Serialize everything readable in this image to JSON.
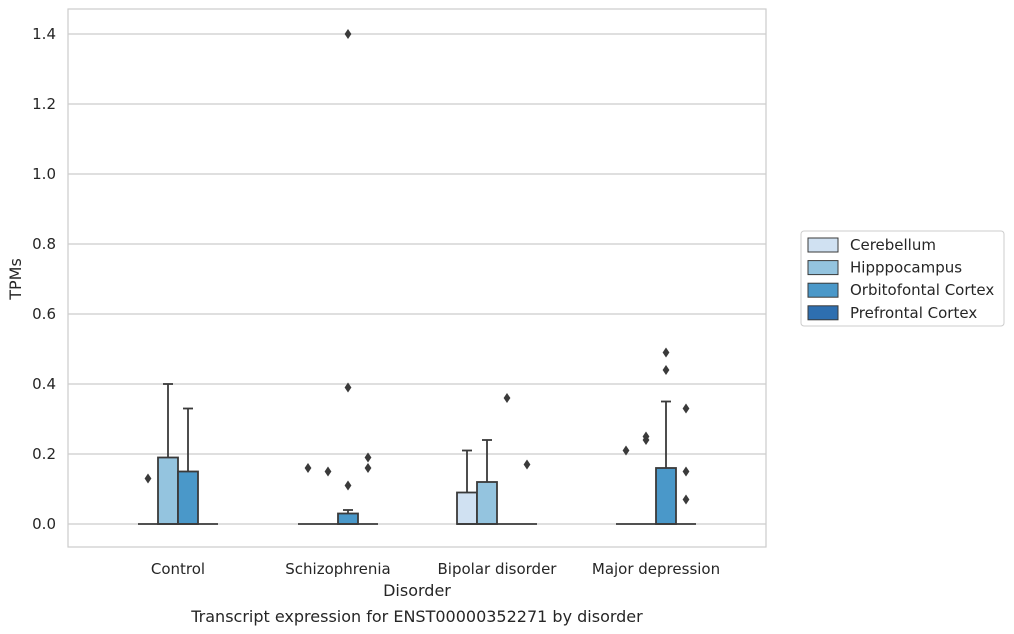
{
  "chart_data": {
    "type": "box",
    "caption": "Transcript expression for ENST00000352271 by disorder",
    "xlabel": "Disorder",
    "ylabel": "TPMs",
    "ylim": [
      -0.07,
      1.47
    ],
    "yticks": [
      0.0,
      0.2,
      0.4,
      0.6,
      0.8,
      1.0,
      1.2,
      1.4
    ],
    "ytick_labels": [
      "0.0",
      "0.2",
      "0.4",
      "0.6",
      "0.8",
      "1.0",
      "1.2",
      "1.4"
    ],
    "grid": "horizontal",
    "legend_position": "right",
    "categories": [
      "Control",
      "Schizophrenia",
      "Bipolar disorder",
      "Major depression"
    ],
    "series": [
      {
        "name": "Cerebellum",
        "color": "#d0e1f2",
        "boxes": [
          {
            "q1": 0,
            "median": 0,
            "q3": 0,
            "whisker_low": 0,
            "whisker_high": 0,
            "outliers": [
              0.13
            ]
          },
          {
            "q1": 0,
            "median": 0,
            "q3": 0,
            "whisker_low": 0,
            "whisker_high": 0,
            "outliers": [
              0.16
            ]
          },
          {
            "q1": 0,
            "median": 0,
            "q3": 0.09,
            "whisker_low": 0,
            "whisker_high": 0.21,
            "outliers": []
          },
          {
            "q1": 0,
            "median": 0,
            "q3": 0,
            "whisker_low": 0,
            "whisker_high": 0,
            "outliers": [
              0.21
            ]
          }
        ]
      },
      {
        "name": "Hipppocampus",
        "color": "#94c4df",
        "boxes": [
          {
            "q1": 0,
            "median": 0,
            "q3": 0.19,
            "whisker_low": 0,
            "whisker_high": 0.4,
            "outliers": []
          },
          {
            "q1": 0,
            "median": 0,
            "q3": 0,
            "whisker_low": 0,
            "whisker_high": 0,
            "outliers": [
              0.15
            ]
          },
          {
            "q1": 0,
            "median": 0,
            "q3": 0.12,
            "whisker_low": 0,
            "whisker_high": 0.24,
            "outliers": []
          },
          {
            "q1": 0,
            "median": 0,
            "q3": 0,
            "whisker_low": 0,
            "whisker_high": 0,
            "outliers": [
              0.24,
              0.25
            ]
          }
        ]
      },
      {
        "name": "Orbitofontal Cortex",
        "color": "#4a98c9",
        "boxes": [
          {
            "q1": 0,
            "median": 0,
            "q3": 0.15,
            "whisker_low": 0,
            "whisker_high": 0.33,
            "outliers": []
          },
          {
            "q1": 0,
            "median": 0,
            "q3": 0.03,
            "whisker_low": 0,
            "whisker_high": 0.04,
            "outliers": [
              0.11,
              0.39,
              1.4
            ]
          },
          {
            "q1": 0,
            "median": 0,
            "q3": 0,
            "whisker_low": 0,
            "whisker_high": 0,
            "outliers": [
              0.36
            ]
          },
          {
            "q1": 0,
            "median": 0,
            "q3": 0.16,
            "whisker_low": 0,
            "whisker_high": 0.35,
            "outliers": [
              0.44,
              0.49
            ]
          }
        ]
      },
      {
        "name": "Prefrontal Cortex",
        "color": "#2e6fb0",
        "boxes": [
          {
            "q1": 0,
            "median": 0,
            "q3": 0,
            "whisker_low": 0,
            "whisker_high": 0,
            "outliers": []
          },
          {
            "q1": 0,
            "median": 0,
            "q3": 0,
            "whisker_low": 0,
            "whisker_high": 0,
            "outliers": [
              0.16,
              0.19
            ]
          },
          {
            "q1": 0,
            "median": 0,
            "q3": 0,
            "whisker_low": 0,
            "whisker_high": 0,
            "outliers": [
              0.17
            ]
          },
          {
            "q1": 0,
            "median": 0,
            "q3": 0,
            "whisker_low": 0,
            "whisker_high": 0,
            "outliers": [
              0.07,
              0.15,
              0.33
            ]
          }
        ]
      }
    ]
  }
}
